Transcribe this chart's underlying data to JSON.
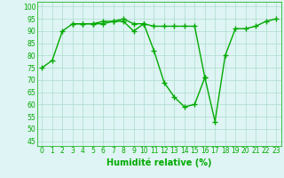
{
  "x": [
    0,
    1,
    2,
    3,
    4,
    5,
    6,
    7,
    8,
    9,
    10,
    11,
    12,
    13,
    14,
    15,
    16,
    17,
    18,
    19,
    20,
    21,
    22,
    23
  ],
  "line1": [
    75,
    78,
    90,
    93,
    93,
    93,
    94,
    94,
    95,
    93,
    93,
    null,
    null,
    null,
    null,
    null,
    null,
    null,
    null,
    null,
    null,
    null,
    null,
    null
  ],
  "line2": [
    null,
    null,
    null,
    93,
    93,
    93,
    93,
    94,
    94,
    90,
    93,
    82,
    69,
    63,
    59,
    60,
    71,
    null,
    null,
    null,
    null,
    null,
    null,
    null
  ],
  "line3": [
    null,
    null,
    null,
    null,
    null,
    null,
    null,
    null,
    null,
    null,
    93,
    92,
    92,
    92,
    92,
    92,
    71,
    53,
    80,
    91,
    91,
    92,
    94,
    95
  ],
  "xlim": [
    -0.5,
    23.5
  ],
  "ylim": [
    43,
    102
  ],
  "yticks": [
    45,
    50,
    55,
    60,
    65,
    70,
    75,
    80,
    85,
    90,
    95,
    100
  ],
  "xticks": [
    0,
    1,
    2,
    3,
    4,
    5,
    6,
    7,
    8,
    9,
    10,
    11,
    12,
    13,
    14,
    15,
    16,
    17,
    18,
    19,
    20,
    21,
    22,
    23
  ],
  "xlabel": "Humidité relative (%)",
  "line_color": "#00aa00",
  "bg_color": "#dff4f4",
  "grid_color": "#aaddcc",
  "marker": "+",
  "marker_size": 4,
  "line_width": 1.0,
  "tick_fontsize": 5.5,
  "xlabel_fontsize": 7.0
}
